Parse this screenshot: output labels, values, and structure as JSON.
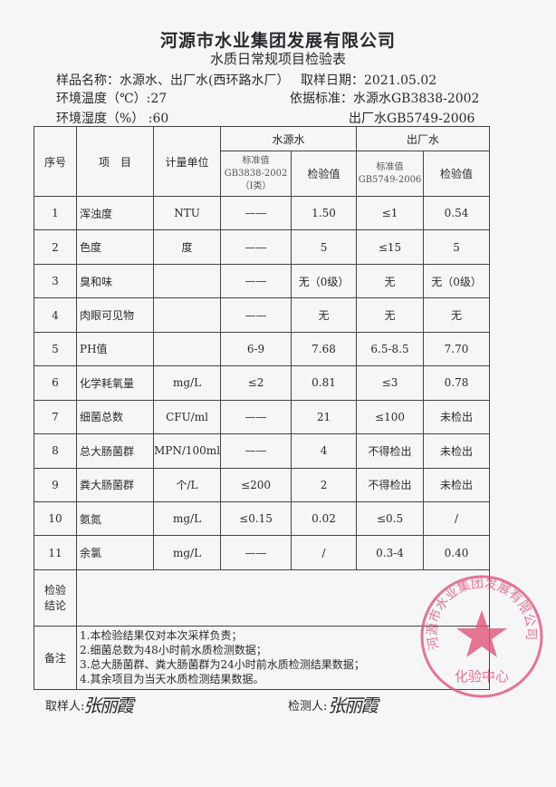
{
  "header": {
    "company": "河源市水业集团发展有限公司",
    "form_title": "水质日常规项目检验表",
    "sample_name": "样品名称：水源水、出厂水(西环路水厂）",
    "sample_date": "取样日期：2021.05.02",
    "temperature": "环境温度（℃）:27",
    "humidity": "环境湿度（%） :60",
    "standard_source": "依据标准：水源水GB3838-2002",
    "standard_output": "出厂水GB5749-2006"
  },
  "table": {
    "headers": {
      "no": "序号",
      "item": "项　目",
      "unit": "计量单位",
      "source_group": "水源水",
      "output_group": "出厂水",
      "source_std": "标准值",
      "source_std_code": "GB3838-2002",
      "source_std_class": "（Ⅰ类）",
      "source_val": "检验值",
      "output_std": "标准值",
      "output_std_code": "GB5749-2006",
      "output_val": "检验值"
    },
    "rows": [
      {
        "no": "1",
        "item": "浑浊度",
        "unit": "NTU",
        "src_std": "——",
        "src_val": "1.50",
        "out_std": "≤1",
        "out_val": "0.54"
      },
      {
        "no": "2",
        "item": "色度",
        "unit": "度",
        "src_std": "——",
        "src_val": "5",
        "out_std": "≤15",
        "out_val": "5"
      },
      {
        "no": "3",
        "item": "臭和味",
        "unit": "",
        "src_std": "——",
        "src_val": "无（0级）",
        "out_std": "无",
        "out_val": "无（0级）"
      },
      {
        "no": "4",
        "item": "肉眼可见物",
        "unit": "",
        "src_std": "——",
        "src_val": "无",
        "out_std": "无",
        "out_val": "无"
      },
      {
        "no": "5",
        "item": "PH值",
        "unit": "",
        "src_std": "6-9",
        "src_val": "7.68",
        "out_std": "6.5-8.5",
        "out_val": "7.70"
      },
      {
        "no": "6",
        "item": "化学耗氧量",
        "unit": "mg/L",
        "src_std": "≤2",
        "src_val": "0.81",
        "out_std": "≤3",
        "out_val": "0.78"
      },
      {
        "no": "7",
        "item": "细菌总数",
        "unit": "CFU/ml",
        "src_std": "——",
        "src_val": "21",
        "out_std": "≤100",
        "out_val": "未检出"
      },
      {
        "no": "8",
        "item": "总大肠菌群",
        "unit": "MPN/100ml",
        "src_std": "——",
        "src_val": "4",
        "out_std": "不得检出",
        "out_val": "未检出"
      },
      {
        "no": "9",
        "item": "粪大肠菌群",
        "unit": "个/L",
        "src_std": "≤200",
        "src_val": "2",
        "out_std": "不得检出",
        "out_val": "未检出"
      },
      {
        "no": "10",
        "item": "氨氮",
        "unit": "mg/L",
        "src_std": "≤0.15",
        "src_val": "0.02",
        "out_std": "≤0.5",
        "out_val": "/"
      },
      {
        "no": "11",
        "item": "余氯",
        "unit": "mg/L",
        "src_std": "——",
        "src_val": "/",
        "out_std": "0.3-4",
        "out_val": "0.40"
      }
    ],
    "conclusion_label_1": "检验",
    "conclusion_label_2": "结论",
    "conclusion": "",
    "notes_label": "备注",
    "notes": [
      "1.本检验结果仅对本次采样负责；",
      "2.细菌总数为48小时前水质检测数据；",
      "3.总大肠菌群、粪大肠菌群为24小时前水质检测结果数据；",
      "4.其余项目为当天水质检测结果数据。"
    ]
  },
  "footer": {
    "sampler_label": "取样人:",
    "sampler_signature": "张丽霞",
    "tester_label": "检测人:",
    "tester_signature": "张丽霞"
  },
  "stamp": {
    "text": "河源市水业集团发展有限公司",
    "center_text": "化验中心",
    "color": "#e0557a"
  }
}
